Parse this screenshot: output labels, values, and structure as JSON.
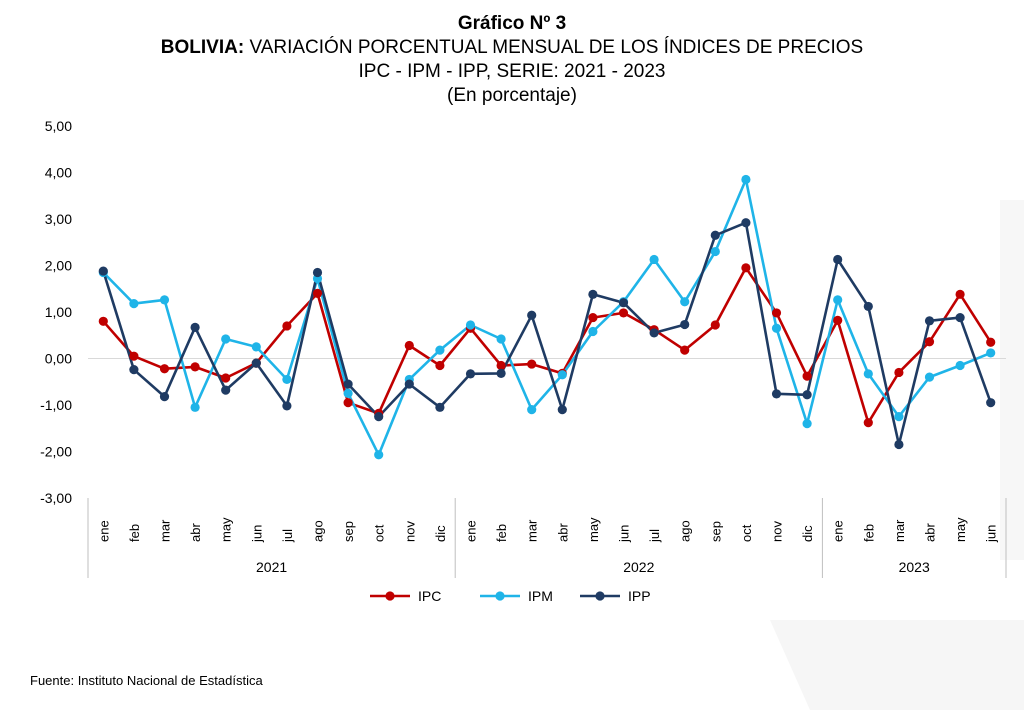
{
  "title": {
    "line1": "Gráfico Nº 3",
    "line2_bold": "BOLIVIA:",
    "line2_rest": "VARIACIÓN PORCENTUAL MENSUAL DE LOS ÍNDICES DE PRECIOS",
    "line3": "IPC - IPM - IPP, SERIE: 2021 - 2023",
    "line4": "(En porcentaje)"
  },
  "source": "Fuente: Instituto Nacional de Estadística",
  "chart_data": {
    "type": "line",
    "categories": [
      "ene",
      "feb",
      "mar",
      "abr",
      "may",
      "jun",
      "jul",
      "ago",
      "sep",
      "oct",
      "nov",
      "dic",
      "ene",
      "feb",
      "mar",
      "abr",
      "may",
      "jun",
      "jul",
      "ago",
      "sep",
      "oct",
      "nov",
      "dic",
      "ene",
      "feb",
      "mar",
      "abr",
      "may",
      "jun"
    ],
    "years": [
      {
        "label": "2021",
        "count": 12
      },
      {
        "label": "2022",
        "count": 12
      },
      {
        "label": "2023",
        "count": 6
      }
    ],
    "ylim": [
      -3,
      5
    ],
    "yticks": [
      "5,00",
      "4,00",
      "3,00",
      "2,00",
      "1,00",
      "0,00",
      "-1,00",
      "-2,00",
      "-3,00"
    ],
    "ytick_values": [
      5,
      4,
      3,
      2,
      1,
      0,
      -1,
      -2,
      -3
    ],
    "legend_position": "bottom",
    "series": [
      {
        "name": "IPC",
        "color": "#c00000",
        "values": [
          0.8,
          0.05,
          -0.22,
          -0.18,
          -0.42,
          -0.1,
          0.7,
          1.4,
          -0.95,
          -1.18,
          0.28,
          -0.15,
          0.65,
          -0.15,
          -0.12,
          -0.32,
          0.88,
          0.98,
          0.62,
          0.18,
          0.72,
          1.95,
          0.98,
          -0.38,
          0.82,
          -1.38,
          -0.3,
          0.36,
          1.38,
          0.35
        ]
      },
      {
        "name": "IPM",
        "color": "#1fb4e8",
        "values": [
          1.85,
          1.18,
          1.26,
          -1.05,
          0.42,
          0.25,
          -0.45,
          1.72,
          -0.75,
          -2.07,
          -0.45,
          0.18,
          0.72,
          0.42,
          -1.1,
          -0.35,
          0.58,
          1.22,
          2.13,
          1.22,
          2.3,
          3.85,
          0.65,
          -1.4,
          1.26,
          -0.33,
          -1.25,
          -0.4,
          -0.15,
          0.12
        ]
      },
      {
        "name": "IPP",
        "color": "#1f3b63",
        "values": [
          1.88,
          -0.24,
          -0.82,
          0.67,
          -0.68,
          -0.1,
          -1.02,
          1.85,
          -0.55,
          -1.25,
          -0.55,
          -1.05,
          -0.33,
          -0.32,
          0.93,
          -1.1,
          1.38,
          1.2,
          0.55,
          0.73,
          2.65,
          2.92,
          -0.76,
          -0.78,
          2.13,
          1.12,
          -1.85,
          0.81,
          0.88,
          -0.95
        ]
      }
    ]
  }
}
